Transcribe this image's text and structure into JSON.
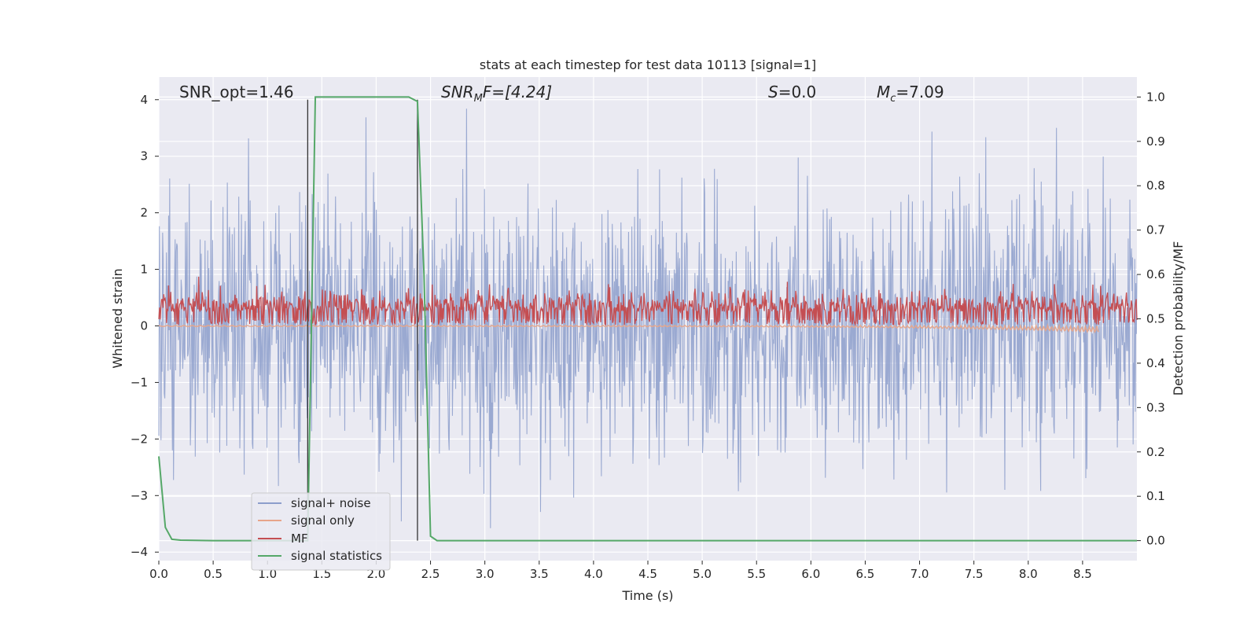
{
  "chart_data": {
    "type": "line",
    "title": "stats at each timestep for test data 10113 [signal=1]",
    "xlabel": "Time (s)",
    "ylabel_left": "Whitened strain",
    "ylabel_right": "Detection probability/MF",
    "xlim": [
      0.0,
      9.0
    ],
    "ylim_left": [
      -4.15,
      4.4
    ],
    "ylim_right": [
      -0.045,
      1.045
    ],
    "x_ticks": [
      "0.0",
      "0.5",
      "1.0",
      "1.5",
      "2.0",
      "2.5",
      "3.0",
      "3.5",
      "4.0",
      "4.5",
      "5.0",
      "5.5",
      "6.0",
      "6.5",
      "7.0",
      "7.5",
      "8.0",
      "8.5"
    ],
    "y_ticks_left": [
      "4",
      "3",
      "2",
      "1",
      "0",
      "−1",
      "−2",
      "−3",
      "−4"
    ],
    "y_ticks_right": [
      "1.0",
      "0.9",
      "0.8",
      "0.7",
      "0.6",
      "0.5",
      "0.4",
      "0.3",
      "0.2",
      "0.1",
      "0.0"
    ],
    "grid": true,
    "background": "#eaeaf2",
    "annotations": {
      "snr_opt": "SNR_opt=1.46",
      "snr_mf_label": "SNR",
      "snr_mf_sub": "M",
      "snr_mf_rest": "F=[4.24]",
      "s_label": "S",
      "s_value": "=0.0",
      "mc_label": "M",
      "mc_sub": "c",
      "mc_value": "=7.09"
    },
    "vertical_lines_x": [
      1.37,
      2.38
    ],
    "series": [
      {
        "name": "signal+ noise",
        "color": "#8c9ecb",
        "axis": "left",
        "description_range": [
          -3.7,
          3.9
        ]
      },
      {
        "name": "signal only",
        "color": "#e7a58a",
        "axis": "left",
        "description_range": [
          -0.15,
          0.05
        ]
      },
      {
        "name": "MF",
        "color": "#c44e52",
        "axis": "left",
        "description_range": [
          0.0,
          1.0
        ]
      },
      {
        "name": "signal statistics",
        "color": "#55a868",
        "axis": "right",
        "x": [
          0.0,
          0.06,
          0.12,
          0.2,
          0.5,
          1.0,
          1.3,
          1.37,
          1.44,
          1.5,
          2.0,
          2.3,
          2.38,
          2.44,
          2.5,
          2.56,
          3.0,
          5.0,
          7.0,
          9.0
        ],
        "values": [
          0.19,
          0.03,
          0.003,
          0.001,
          0.0,
          0.0,
          0.0,
          0.0,
          1.0,
          1.0,
          1.0,
          1.0,
          0.99,
          0.6,
          0.01,
          0.0,
          0.0,
          0.0,
          0.0,
          0.0
        ]
      }
    ],
    "legend": {
      "placement": "lower-left",
      "entries": [
        "signal+ noise",
        "signal only",
        "MF",
        "signal statistics"
      ]
    }
  }
}
